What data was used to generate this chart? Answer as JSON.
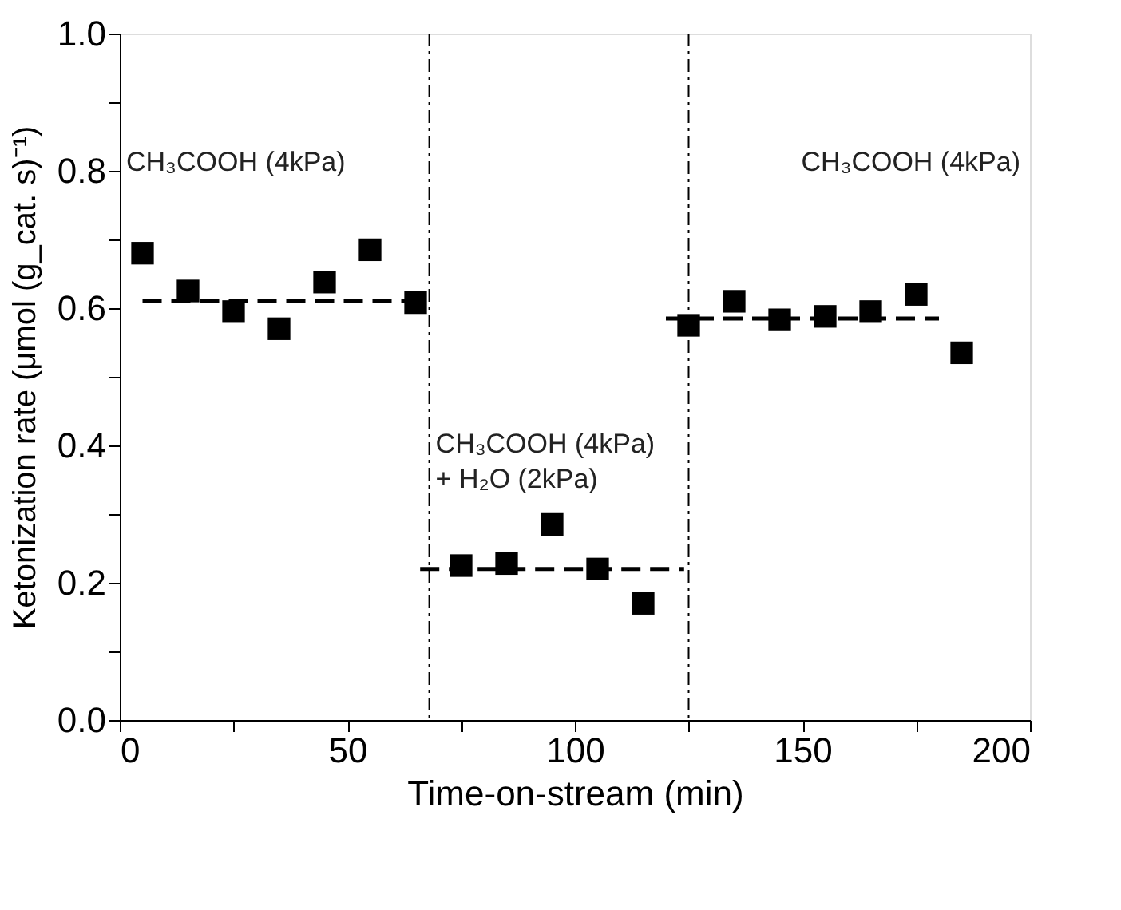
{
  "chart_data": {
    "type": "scatter",
    "xlabel": "Time-on-stream (min)",
    "ylabel": "Ketonization rate (μmol (g_cat. s)⁻¹)",
    "xlim": [
      0,
      200
    ],
    "xticks": [
      0,
      {
        "value": 25,
        "label": null
      },
      50,
      {
        "value": 75,
        "label": null
      },
      100,
      {
        "value": 125,
        "label": null
      },
      150,
      {
        "value": 175,
        "label": null
      },
      200
    ],
    "ylim": [
      0,
      1.0
    ],
    "yticks": [
      {
        "value": 0,
        "label": "0.0"
      },
      {
        "value": 0.1,
        "label": null
      },
      0.2,
      {
        "value": 0.3,
        "label": null
      },
      0.4,
      {
        "value": 0.5,
        "label": null
      },
      0.6,
      {
        "value": 0.7,
        "label": null
      },
      0.8,
      {
        "value": 0.9,
        "label": null
      },
      {
        "value": 1.0,
        "label": "1.0"
      }
    ],
    "grid": false,
    "marker": "square",
    "x": [
      5,
      15,
      25,
      35,
      45,
      55,
      65,
      75,
      85,
      95,
      105,
      115,
      125,
      135,
      145,
      155,
      165,
      175,
      185
    ],
    "series": [
      {
        "color": "#000000",
        "values": [
          0.68,
          0.625,
          0.595,
          0.57,
          0.638,
          0.685,
          0.608,
          0.225,
          0.228,
          0.285,
          0.22,
          0.17,
          0.575,
          0.61,
          0.583,
          0.588,
          0.595,
          0.62,
          0.535
        ]
      },
      {
        "type": "line",
        "marker": "none",
        "line_style": "dashed",
        "color": "#000000",
        "x": [
          5,
          65
        ],
        "values": [
          0.61,
          0.61
        ]
      },
      {
        "type": "line",
        "marker": "none",
        "line_style": "dashed",
        "color": "#000000",
        "x": [
          66,
          124
        ],
        "values": [
          0.22,
          0.22
        ]
      },
      {
        "type": "line",
        "marker": "none",
        "line_style": "dashed",
        "color": "#000000",
        "x": [
          120,
          180
        ],
        "values": [
          0.585,
          0.585
        ]
      }
    ],
    "ref_lines": [
      {
        "axis": "x",
        "value": 68,
        "color": "#000000",
        "line_style": "dashed"
      },
      {
        "axis": "x",
        "value": 125,
        "color": "#000000",
        "line_style": "dashed"
      }
    ],
    "annotations": [
      "CH₃COOH  (4kPa)",
      "CH₃COOH  (4kPa)\n+ H₂O  (2kPa)",
      "CH₃COOH  (4kPa)"
    ]
  }
}
